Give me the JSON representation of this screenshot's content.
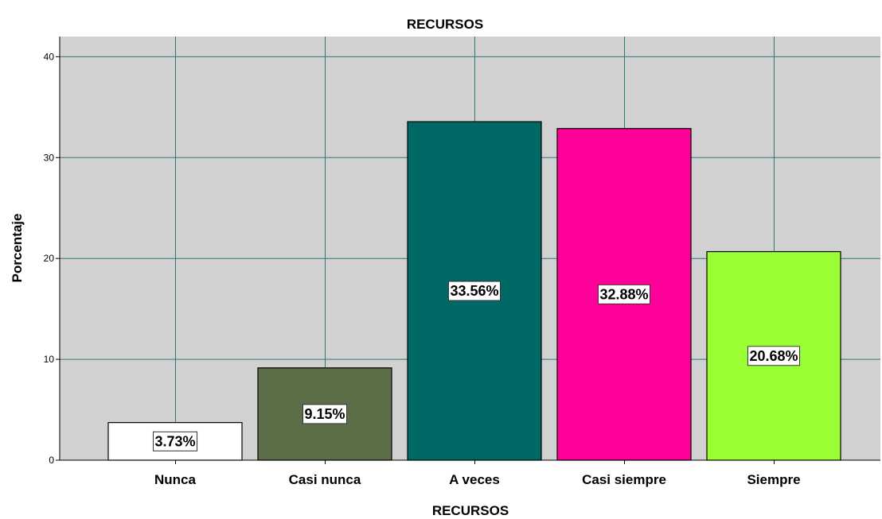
{
  "chart_data": {
    "type": "bar",
    "title": "RECURSOS",
    "xlabel": "RECURSOS",
    "ylabel": "Porcentaje",
    "categories": [
      "Nunca",
      "Casi nunca",
      "A veces",
      "Casi siempre",
      "Siempre"
    ],
    "values": [
      3.73,
      9.15,
      33.56,
      32.88,
      20.68
    ],
    "data_labels": [
      "3.73%",
      "9.15%",
      "33.56%",
      "32.88%",
      "20.68%"
    ],
    "colors": [
      "#ffffff",
      "#5b6e47",
      "#006865",
      "#ff0099",
      "#99ff33"
    ],
    "ylim": [
      0,
      42
    ],
    "yticks": [
      0,
      10,
      20,
      30,
      40
    ],
    "grid": true,
    "legend": "none",
    "plot_background": "#d1d1d1",
    "grid_color": "#2b7a7a"
  }
}
